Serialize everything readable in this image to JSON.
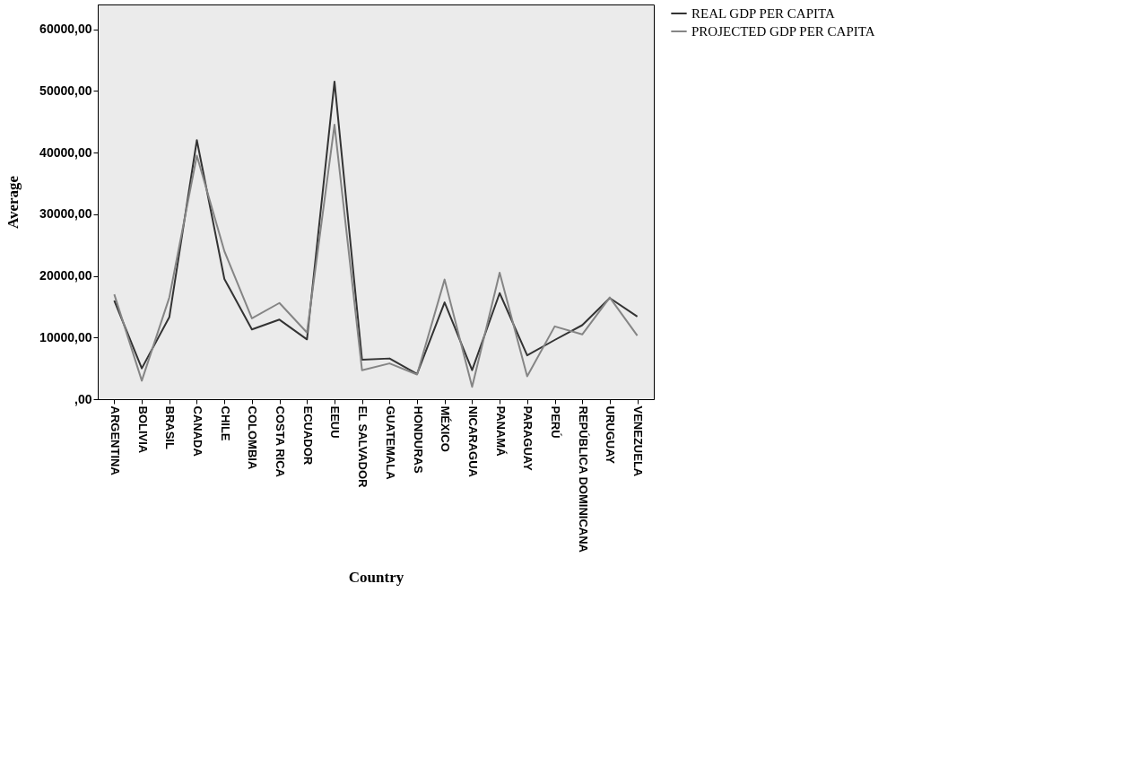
{
  "chart_data": {
    "type": "line",
    "xlabel": "Country",
    "ylabel": "Average",
    "categories": [
      "ARGENTINA",
      "BOLIVIA",
      "BRASIL",
      "CANADA",
      "CHILE",
      "COLOMBIA",
      "COSTA RICA",
      "ECUADOR",
      "EEUU",
      "EL SALVADOR",
      "GUATEMALA",
      "HONDURAS",
      "MÉXICO",
      "NICARAGUA",
      "PANAMÁ",
      "PARAGUAY",
      "PERÚ",
      "REPÚBLICA DOMINICANA",
      "URUGUAY",
      "VENEZUELA"
    ],
    "series": [
      {
        "name": "REAL GDP PER CAPITA",
        "color": "#333333",
        "values": [
          16000,
          5000,
          13300,
          42000,
          19500,
          11300,
          12900,
          9700,
          51500,
          6400,
          6600,
          4100,
          15700,
          4700,
          17200,
          7100,
          9600,
          12000,
          16400,
          13400
        ]
      },
      {
        "name": "PROJECTED GDP PER CAPITA",
        "color": "#858585",
        "values": [
          17000,
          3000,
          16500,
          39500,
          24000,
          13100,
          15600,
          10800,
          44500,
          4700,
          5800,
          4000,
          19400,
          2000,
          20500,
          3700,
          11800,
          10500,
          16500,
          10300
        ]
      }
    ],
    "ylim": [
      0,
      64000
    ],
    "yticks": [
      {
        "value": 0,
        "label": ",00"
      },
      {
        "value": 10000,
        "label": "10000,00"
      },
      {
        "value": 20000,
        "label": "20000,00"
      },
      {
        "value": 30000,
        "label": "30000,00"
      },
      {
        "value": 40000,
        "label": "40000,00"
      },
      {
        "value": 50000,
        "label": "50000,00"
      },
      {
        "value": 60000,
        "label": "60000,00"
      }
    ],
    "grid": false,
    "legend": "top right",
    "marker": "none",
    "line_style": "solid"
  }
}
